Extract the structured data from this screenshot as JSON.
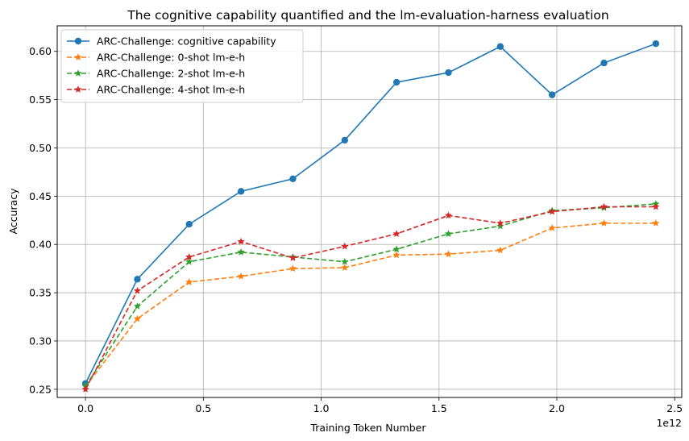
{
  "chart_data": {
    "type": "line",
    "title": "The cognitive capability quantified and the lm-evaluation-harness evaluation",
    "xlabel": "Training Token Number",
    "ylabel": "Accuracy",
    "x_offset_label": "1e12",
    "xlim": [
      -0.12,
      2.53
    ],
    "ylim": [
      0.2415,
      0.6265
    ],
    "x_ticks": [
      0.0,
      0.5,
      1.0,
      1.5,
      2.0,
      2.5
    ],
    "x_tick_labels": [
      "0.0",
      "0.5",
      "1.0",
      "1.5",
      "2.0",
      "2.5"
    ],
    "y_ticks": [
      0.25,
      0.3,
      0.35,
      0.4,
      0.45,
      0.5,
      0.55,
      0.6
    ],
    "y_tick_labels": [
      "0.25",
      "0.30",
      "0.35",
      "0.40",
      "0.45",
      "0.50",
      "0.55",
      "0.60"
    ],
    "grid": true,
    "legend_position": "top-left",
    "x": [
      0.0,
      0.22,
      0.44,
      0.66,
      0.88,
      1.1,
      1.32,
      1.54,
      1.76,
      1.98,
      2.2,
      2.42
    ],
    "series": [
      {
        "name": "ARC-Challenge: cognitive capability",
        "color": "#1f77b4",
        "line_style": "solid",
        "marker": "circle",
        "values": [
          0.256,
          0.364,
          0.421,
          0.455,
          0.468,
          0.508,
          0.568,
          0.578,
          0.605,
          0.555,
          0.588,
          0.608
        ]
      },
      {
        "name": "ARC-Challenge: 0-shot lm-e-h",
        "color": "#ff7f0e",
        "line_style": "dashed",
        "marker": "star",
        "values": [
          0.253,
          0.323,
          0.361,
          0.367,
          0.375,
          0.376,
          0.389,
          0.39,
          0.394,
          0.417,
          0.422,
          0.422
        ]
      },
      {
        "name": "ARC-Challenge: 2-shot lm-e-h",
        "color": "#2ca02c",
        "line_style": "dashed",
        "marker": "star",
        "values": [
          0.253,
          0.336,
          0.382,
          0.392,
          0.387,
          0.382,
          0.395,
          0.411,
          0.419,
          0.435,
          0.438,
          0.442
        ]
      },
      {
        "name": "ARC-Challenge: 4-shot lm-e-h",
        "color": "#d62728",
        "line_style": "dashed",
        "marker": "star",
        "values": [
          0.25,
          0.352,
          0.387,
          0.403,
          0.386,
          0.398,
          0.411,
          0.43,
          0.422,
          0.434,
          0.439,
          0.439
        ]
      }
    ]
  }
}
